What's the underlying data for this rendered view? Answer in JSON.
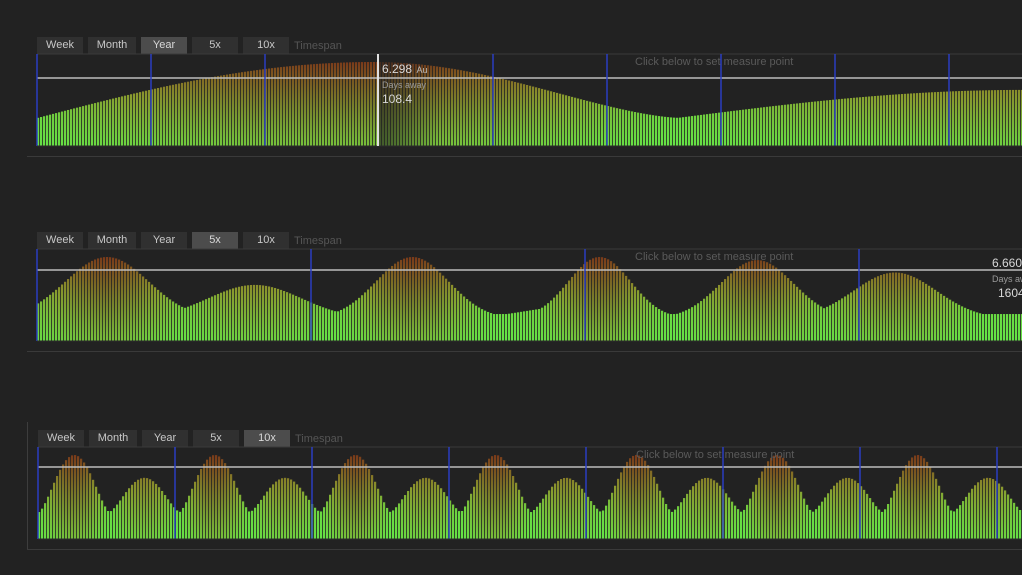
{
  "panels": [
    {
      "tabs": [
        {
          "label": "Week",
          "active": false
        },
        {
          "label": "Month",
          "active": false
        },
        {
          "label": "Year",
          "active": true
        },
        {
          "label": "5x",
          "active": false
        },
        {
          "label": "10x",
          "active": false
        }
      ],
      "timespan_label": "Timespan",
      "hint": "Click below to set measure point",
      "readout": {
        "value": "6.298",
        "unit": "Au",
        "days_label": "Days away",
        "days": "108.4"
      }
    },
    {
      "tabs": [
        {
          "label": "Week",
          "active": false
        },
        {
          "label": "Month",
          "active": false
        },
        {
          "label": "Year",
          "active": false
        },
        {
          "label": "5x",
          "active": true
        },
        {
          "label": "10x",
          "active": false
        }
      ],
      "timespan_label": "Timespan",
      "hint": "Click below to set measure point",
      "readout": {
        "value": "6.660",
        "unit": "",
        "days_label": "Days aw",
        "days": "1604"
      }
    },
    {
      "tabs": [
        {
          "label": "Week",
          "active": false
        },
        {
          "label": "Month",
          "active": false
        },
        {
          "label": "Year",
          "active": false
        },
        {
          "label": "5x",
          "active": false
        },
        {
          "label": "10x",
          "active": true
        }
      ],
      "timespan_label": "Timespan",
      "hint": "Click below to set measure point"
    }
  ],
  "colors": {
    "background": "#222222",
    "bar_near": "#63e847",
    "bar_far": "#7a3a1a",
    "marker_blue": "#2b3fc8",
    "reference_line": "#bdbdbd"
  }
}
